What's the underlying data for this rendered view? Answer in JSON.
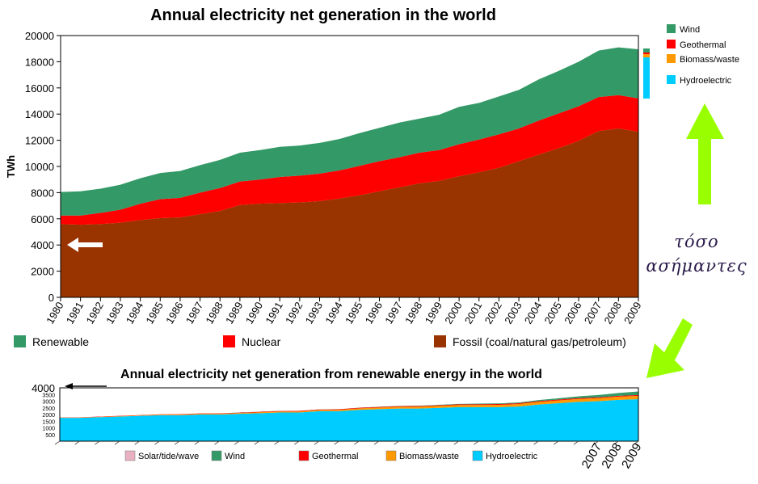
{
  "chart_data": [
    {
      "type": "area",
      "title": "Annual electricity net generation in the world",
      "ylabel": "TWh",
      "xlabel": "",
      "ylim": [
        0,
        20000
      ],
      "yticks": [
        "0",
        "2000",
        "4000",
        "6000",
        "8000",
        "10000",
        "12000",
        "14000",
        "16000",
        "18000",
        "20000"
      ],
      "x": [
        "1980",
        "1981",
        "1982",
        "1983",
        "1984",
        "1985",
        "1986",
        "1987",
        "1988",
        "1989",
        "1990",
        "1991",
        "1992",
        "1993",
        "1994",
        "1995",
        "1996",
        "1997",
        "1998",
        "1999",
        "2000",
        "2001",
        "2002",
        "2003",
        "2004",
        "2005",
        "2006",
        "2007",
        "2008",
        "2009"
      ],
      "stacked": true,
      "grid": false,
      "legend_position": "bottom",
      "series": [
        {
          "name": "Fossil (coal/natural gas/petroleum)",
          "color": "#993300",
          "values": [
            5600,
            5550,
            5600,
            5700,
            5900,
            6050,
            6100,
            6350,
            6600,
            7050,
            7150,
            7200,
            7250,
            7350,
            7550,
            7800,
            8100,
            8400,
            8700,
            8900,
            9250,
            9550,
            9900,
            10400,
            10900,
            11400,
            11950,
            12700,
            12900,
            12650
          ]
        },
        {
          "name": "Nuclear",
          "color": "#ff0000",
          "values": [
            650,
            700,
            850,
            1000,
            1250,
            1450,
            1500,
            1650,
            1750,
            1800,
            1850,
            2000,
            2050,
            2100,
            2150,
            2250,
            2300,
            2300,
            2350,
            2350,
            2450,
            2500,
            2550,
            2500,
            2600,
            2650,
            2650,
            2600,
            2550,
            2550
          ]
        },
        {
          "name": "Renewable",
          "color": "#339966",
          "values": [
            1800,
            1850,
            1850,
            1900,
            1950,
            2000,
            2050,
            2100,
            2150,
            2200,
            2250,
            2300,
            2300,
            2350,
            2400,
            2500,
            2550,
            2650,
            2600,
            2700,
            2850,
            2800,
            2900,
            2950,
            3150,
            3250,
            3400,
            3550,
            3650,
            3750
          ]
        }
      ],
      "legend": [
        "Renewable",
        "Nuclear",
        "Fossil (coal/natural gas/petroleum)"
      ]
    },
    {
      "type": "area",
      "title": "Annual electricity net generation from renewable energy in the world",
      "ylim": [
        0,
        4000
      ],
      "yticks": [
        "500",
        "1000",
        "1500",
        "2000",
        "2500",
        "3000",
        "3500",
        "4000"
      ],
      "x_visible_labels": [
        "2007",
        "2008",
        "2009"
      ],
      "stacked": true,
      "series": [
        {
          "name": "Hydroelectric",
          "color": "#00ccff",
          "values": [
            1750,
            1750,
            1800,
            1850,
            1900,
            1950,
            1950,
            2000,
            2000,
            2050,
            2100,
            2150,
            2150,
            2250,
            2250,
            2350,
            2400,
            2450,
            2450,
            2500,
            2550,
            2550,
            2550,
            2600,
            2750,
            2850,
            2950,
            3000,
            3100,
            3150
          ]
        },
        {
          "name": "Biomass/waste",
          "color": "#ff9900",
          "values": [
            20,
            25,
            25,
            30,
            35,
            40,
            45,
            50,
            55,
            60,
            70,
            75,
            80,
            90,
            100,
            110,
            120,
            130,
            140,
            150,
            160,
            170,
            180,
            190,
            200,
            210,
            220,
            230,
            240,
            250
          ]
        },
        {
          "name": "Geothermal",
          "color": "#ff0000",
          "values": [
            15,
            15,
            20,
            20,
            20,
            25,
            25,
            30,
            30,
            35,
            35,
            40,
            40,
            40,
            45,
            45,
            45,
            50,
            50,
            50,
            55,
            55,
            55,
            55,
            55,
            60,
            60,
            60,
            60,
            60
          ]
        },
        {
          "name": "Wind",
          "color": "#339966",
          "values": [
            0,
            0,
            0,
            0,
            0,
            0,
            0,
            0,
            0,
            5,
            5,
            5,
            5,
            5,
            10,
            10,
            15,
            15,
            20,
            25,
            30,
            40,
            50,
            60,
            80,
            100,
            130,
            170,
            210,
            270
          ]
        },
        {
          "name": "Solar/tide/wave",
          "color": "#e8b0c0",
          "values": [
            0,
            0,
            0,
            0,
            0,
            0,
            0,
            0,
            0,
            0,
            0,
            0,
            0,
            0,
            0,
            0,
            0,
            0,
            0,
            0,
            0,
            0,
            0,
            0,
            0,
            0,
            0,
            0,
            0,
            5
          ]
        }
      ],
      "legend": [
        "Solar/tide/wave",
        "Wind",
        "Geothermal",
        "Biomass/waste",
        "Hydroelectric"
      ]
    }
  ],
  "side_legend": [
    {
      "name": "Wind",
      "color": "#339966"
    },
    {
      "name": "Geothermal",
      "color": "#ff0000"
    },
    {
      "name": "Biomass/waste",
      "color": "#ff9900"
    },
    {
      "name": "Hydroelectric",
      "color": "#00ccff"
    }
  ],
  "side_bar_colors": [
    "#339966",
    "#ff0000",
    "#ff9900",
    "#00ccff"
  ],
  "annotation": {
    "line1": "τόσο",
    "line2": "ασήμαντες",
    "arrow_color": "#99ff00"
  },
  "white_arrow_color": "#ffffff"
}
